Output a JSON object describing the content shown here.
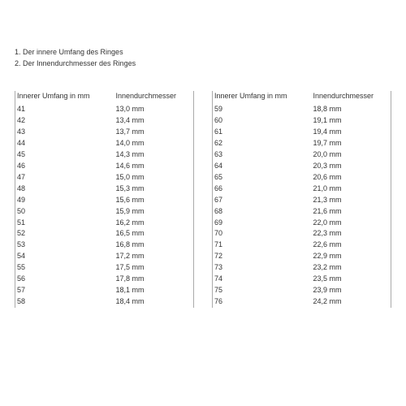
{
  "intro": {
    "line1": "1. Der innere Umfang des Ringes",
    "line2": "2. Der Innendurchmesser des Ringes"
  },
  "headers": {
    "col1": "Innerer Umfang in mm",
    "col2": "Innendurchmesser"
  },
  "left_table": [
    {
      "c": "41",
      "d": "13,0 mm"
    },
    {
      "c": "42",
      "d": "13,4 mm"
    },
    {
      "c": "43",
      "d": "13,7 mm"
    },
    {
      "c": "44",
      "d": "14,0 mm"
    },
    {
      "c": "45",
      "d": "14,3 mm"
    },
    {
      "c": "46",
      "d": "14,6 mm"
    },
    {
      "c": "47",
      "d": "15,0 mm"
    },
    {
      "c": "48",
      "d": "15,3 mm"
    },
    {
      "c": "49",
      "d": "15,6 mm"
    },
    {
      "c": "50",
      "d": "15,9 mm"
    },
    {
      "c": "51",
      "d": "16,2 mm"
    },
    {
      "c": "52",
      "d": "16,5 mm"
    },
    {
      "c": "53",
      "d": "16,8 mm"
    },
    {
      "c": "54",
      "d": "17,2 mm"
    },
    {
      "c": "55",
      "d": "17,5 mm"
    },
    {
      "c": "56",
      "d": "17,8 mm"
    },
    {
      "c": "57",
      "d": "18,1 mm"
    },
    {
      "c": "58",
      "d": "18,4 mm"
    }
  ],
  "right_table": [
    {
      "c": "59",
      "d": "18,8 mm"
    },
    {
      "c": "60",
      "d": "19,1 mm"
    },
    {
      "c": "61",
      "d": "19,4 mm"
    },
    {
      "c": "62",
      "d": "19,7 mm"
    },
    {
      "c": "63",
      "d": "20,0 mm"
    },
    {
      "c": "64",
      "d": "20,3 mm"
    },
    {
      "c": "65",
      "d": "20,6 mm"
    },
    {
      "c": "66",
      "d": "21,0 mm"
    },
    {
      "c": "67",
      "d": "21,3 mm"
    },
    {
      "c": "68",
      "d": "21,6 mm"
    },
    {
      "c": "69",
      "d": "22,0 mm"
    },
    {
      "c": "70",
      "d": "22,3 mm"
    },
    {
      "c": "71",
      "d": "22,6 mm"
    },
    {
      "c": "72",
      "d": "22,9 mm"
    },
    {
      "c": "73",
      "d": "23,2 mm"
    },
    {
      "c": "74",
      "d": "23,5 mm"
    },
    {
      "c": "75",
      "d": "23,9 mm"
    },
    {
      "c": "76",
      "d": "24,2 mm"
    }
  ],
  "style": {
    "background_color": "#ffffff",
    "text_color": "#333333",
    "border_color": "#aaaaaa",
    "font_family": "Arial",
    "font_size_pt": 7
  }
}
